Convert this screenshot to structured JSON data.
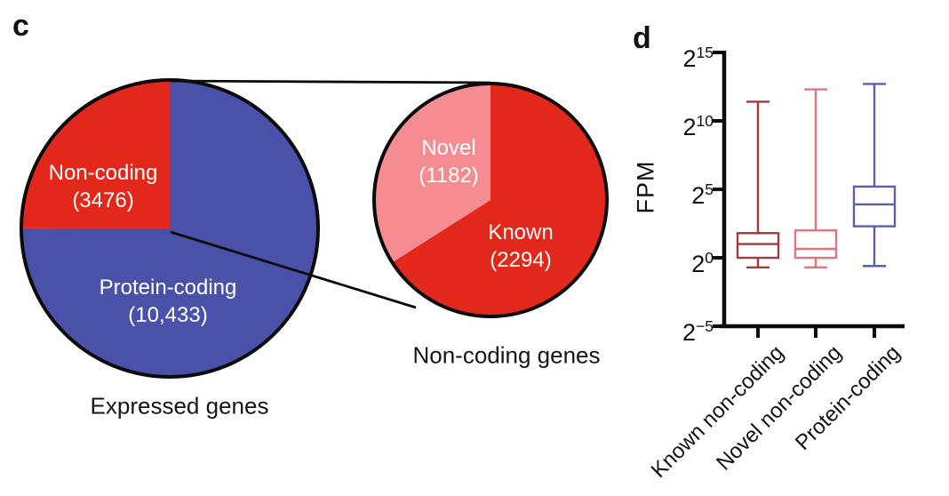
{
  "panels": {
    "c": "c",
    "d": "d"
  },
  "expressed_pie": {
    "title": "Expressed genes",
    "slices": {
      "protein_coding": {
        "label": "Protein-coding",
        "value": "(10,433)"
      },
      "non_coding": {
        "label": "Non-coding",
        "value": "(3476)"
      }
    }
  },
  "noncoding_pie": {
    "title": "Non-coding genes",
    "slices": {
      "novel": {
        "label": "Novel",
        "value": "(1182)"
      },
      "known": {
        "label": "Known",
        "value": "(2294)"
      }
    }
  },
  "boxplot": {
    "ylabel": "FPM",
    "y_tick_base": "2",
    "y_tick_exponents": [
      "15",
      "10",
      "5",
      "0",
      "−5"
    ],
    "categories": [
      "Known non-coding",
      "Novel non-coding",
      "Protein-coding"
    ]
  },
  "colors": {
    "pie_blue": "#4a51a8",
    "pie_red": "#e2271b",
    "pie_pink": "#f48c91",
    "box_dark_red": "#a03a3d",
    "box_salmon": "#e0757f",
    "box_blue": "#5a61a8",
    "outline_black": "#0b0b0b"
  },
  "chart_data": [
    {
      "type": "pie",
      "title": "Expressed genes",
      "labels": [
        "Protein-coding",
        "Non-coding"
      ],
      "values": [
        10433,
        3476
      ],
      "colors": [
        "#4a51a8",
        "#e2271b"
      ],
      "start_angle_deg_from_top": 0,
      "direction": "clockwise",
      "outline": "#0b0b0b",
      "note": "Non-coding (red) slice fills the upper-left quadrant; exploded into second pie"
    },
    {
      "type": "pie",
      "title": "Non-coding genes",
      "labels": [
        "Known",
        "Novel"
      ],
      "values": [
        2294,
        1182
      ],
      "colors": [
        "#e2271b",
        "#f48c91"
      ],
      "start_angle_deg_from_top": 0,
      "direction": "clockwise",
      "outline": "#0b0b0b",
      "note": "Novel (pink) slice fills the upper-left sector"
    },
    {
      "type": "box",
      "ylabel": "FPM",
      "y_scale": "log2",
      "ylim_log2": [
        -5,
        15
      ],
      "y_ticks_log2": [
        15,
        10,
        5,
        0,
        -5
      ],
      "grid": false,
      "categories": [
        "Known non-coding",
        "Novel non-coding",
        "Protein-coding"
      ],
      "series": [
        {
          "name": "Known non-coding",
          "color": "#a03a3d",
          "log2_stats": {
            "whisker_low": -0.7,
            "q1": 0.0,
            "median": 1.0,
            "q3": 1.8,
            "whisker_high": 11.4
          }
        },
        {
          "name": "Novel non-coding",
          "color": "#e0757f",
          "log2_stats": {
            "whisker_low": -0.7,
            "q1": 0.0,
            "median": 0.65,
            "q3": 2.0,
            "whisker_high": 12.3
          }
        },
        {
          "name": "Protein-coding",
          "color": "#5a61a8",
          "log2_stats": {
            "whisker_low": -0.6,
            "q1": 2.3,
            "median": 3.9,
            "q3": 5.2,
            "whisker_high": 12.7
          }
        }
      ]
    }
  ]
}
